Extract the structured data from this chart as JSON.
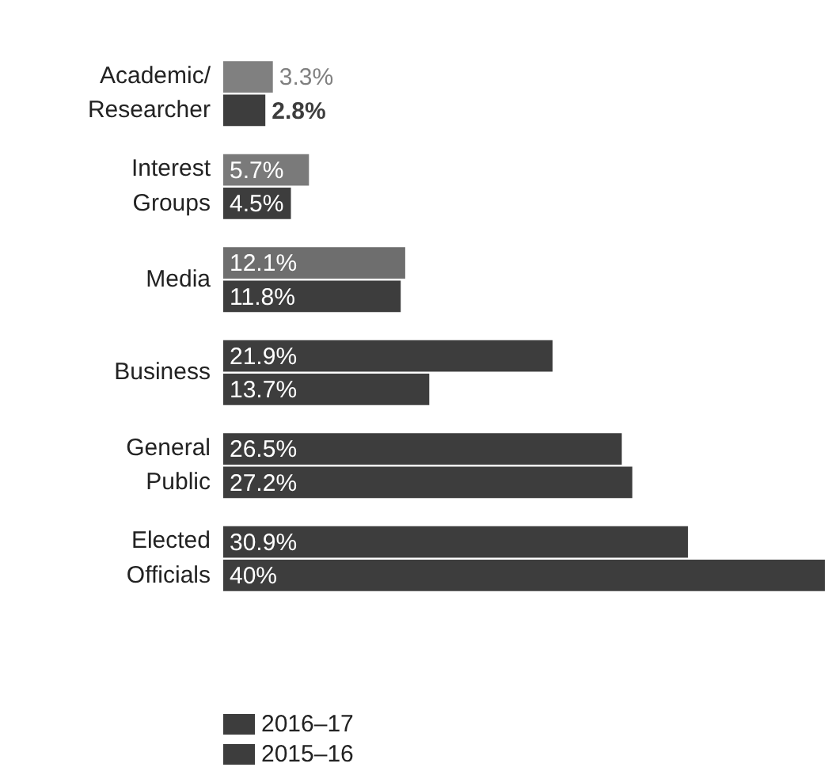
{
  "chart_data": {
    "type": "bar",
    "orientation": "horizontal",
    "categories": [
      "Academic/\nResearcher",
      "Interest\nGroups",
      "Media",
      "Business",
      "General\nPublic",
      "Elected\nOfficials"
    ],
    "series": [
      {
        "name": "2016–17",
        "color": "#3d3d3d",
        "colors": [
          "#808080",
          "#7a7a7a",
          "#6e6e6e",
          "#3d3d3d",
          "#3d3d3d",
          "#3d3d3d"
        ],
        "values": [
          3.3,
          5.7,
          12.1,
          21.9,
          26.5,
          30.9
        ],
        "value_labels": [
          "3.3%",
          "5.7%",
          "12.1%",
          "21.9%",
          "26.5%",
          "30.9%"
        ]
      },
      {
        "name": "2015–16",
        "color": "#3d3d3d",
        "values": [
          2.8,
          4.5,
          11.8,
          13.7,
          27.2,
          40
        ],
        "value_labels": [
          "2.8%",
          "4.5%",
          "11.8%",
          "13.7%",
          "27.2%",
          "40%"
        ]
      }
    ],
    "legend": "bottom left",
    "grid": false,
    "tick_labels": "y"
  }
}
